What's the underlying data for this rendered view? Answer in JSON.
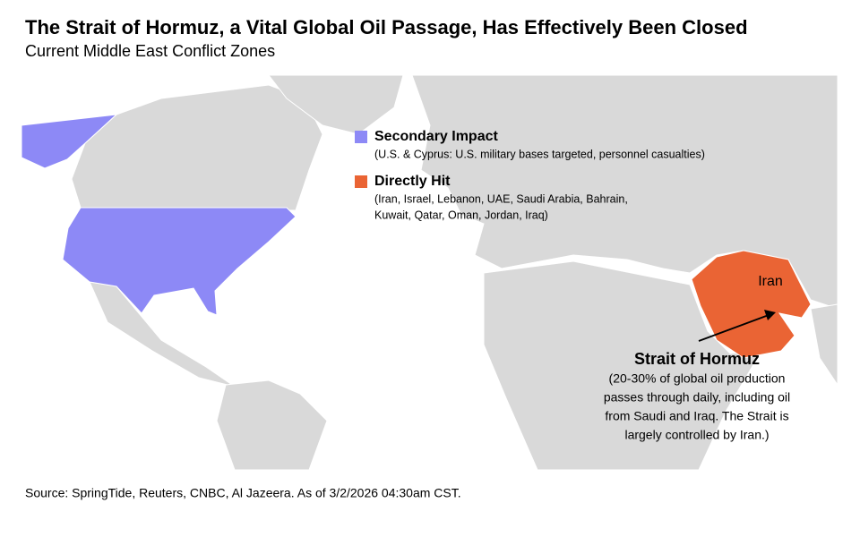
{
  "header": {
    "title": "The Strait of Hormuz, a Vital Global Oil Passage, Has Effectively Been Closed",
    "subtitle": "Current Middle East Conflict Zones"
  },
  "legend": {
    "items": [
      {
        "label": "Secondary Impact",
        "color": "#8d89f6",
        "description": [
          "(U.S. & Cyprus: U.S. military bases targeted, personnel casualties)"
        ]
      },
      {
        "label": "Directly Hit",
        "color": "#ea6434",
        "description": [
          "(Iran, Israel, Lebanon, UAE, Saudi Arabia, Bahrain,",
          "Kuwait, Qatar, Oman, Jordan, Iraq)"
        ]
      }
    ]
  },
  "annotations": {
    "iran": "Iran",
    "strait_title": "Strait of Hormuz",
    "strait_description": [
      "(20-30% of global oil production",
      "passes through daily, including oil",
      "from Saudi and Iraq. The Strait is",
      "largely controlled by Iran.)"
    ]
  },
  "source": "Source: SpringTide, Reuters, CNBC,  Al Jazeera. As of 3/2/2026 04:30am CST."
}
